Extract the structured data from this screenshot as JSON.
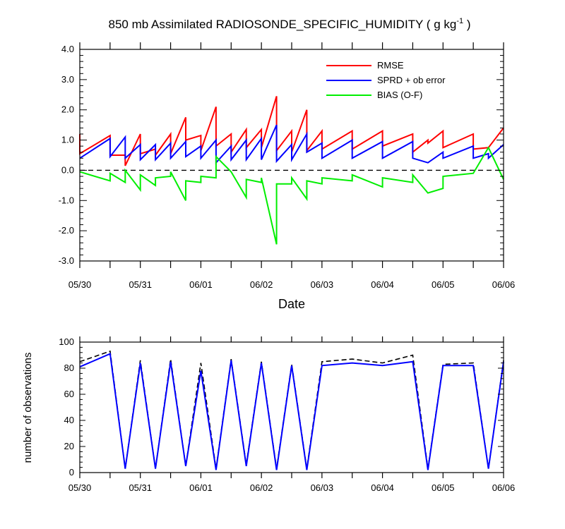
{
  "chart_data": [
    {
      "type": "line",
      "title": "850 mb Assimilated RADIOSONDE_SPECIFIC_HUMIDITY ( g kg",
      "title_units_exp": "-1",
      "title_close": " )",
      "xlabel": "Date",
      "ylabel": "",
      "ylim": [
        -3.0,
        4.0
      ],
      "yticks": [
        -3.0,
        -2.0,
        -1.0,
        0.0,
        1.0,
        2.0,
        3.0,
        4.0
      ],
      "ytick_labels": [
        "-3.0",
        "-2.0",
        "-1.0",
        "0.0",
        "1.0",
        "2.0",
        "3.0",
        "4.0"
      ],
      "xlim": [
        0,
        14
      ],
      "xticks": [
        0,
        2,
        4,
        6,
        8,
        10,
        12,
        14
      ],
      "xtick_labels": [
        "05/30",
        "05/31",
        "06/01",
        "06/02",
        "06/03",
        "06/04",
        "06/05",
        "06/06"
      ],
      "grid": false,
      "legend_position": "top-right",
      "reference_line": {
        "y": 0.0,
        "style": "dashed",
        "color": "#000000"
      },
      "series": [
        {
          "name": "RMSE",
          "color": "#ff0000",
          "points": [
            [
              0,
              1.2
            ],
            [
              0,
              0.55
            ],
            [
              1,
              1.15
            ],
            [
              1,
              0.5
            ],
            [
              1.5,
              0.5
            ],
            [
              1.5,
              0.15
            ],
            [
              2,
              1.2
            ],
            [
              2,
              0.55
            ],
            [
              2.5,
              0.7
            ],
            [
              2.5,
              0.5
            ],
            [
              3,
              1.2
            ],
            [
              3,
              0.55
            ],
            [
              3.5,
              1.75
            ],
            [
              3.5,
              1.0
            ],
            [
              4,
              1.15
            ],
            [
              4,
              0.65
            ],
            [
              4.5,
              2.1
            ],
            [
              4.5,
              0.8
            ],
            [
              5,
              1.2
            ],
            [
              5,
              0.6
            ],
            [
              5.5,
              1.35
            ],
            [
              5.5,
              0.75
            ],
            [
              6,
              1.35
            ],
            [
              6,
              0.75
            ],
            [
              6.5,
              2.45
            ],
            [
              6.5,
              0.65
            ],
            [
              7,
              1.3
            ],
            [
              7,
              0.6
            ],
            [
              7.5,
              2.0
            ],
            [
              7.5,
              0.65
            ],
            [
              8,
              1.3
            ],
            [
              8,
              0.7
            ],
            [
              9,
              1.3
            ],
            [
              9,
              0.7
            ],
            [
              10,
              1.3
            ],
            [
              10,
              0.8
            ],
            [
              11,
              1.2
            ],
            [
              11,
              0.6
            ],
            [
              11.5,
              1.0
            ],
            [
              11.5,
              0.9
            ],
            [
              12,
              1.3
            ],
            [
              12,
              0.75
            ],
            [
              13,
              1.2
            ],
            [
              13,
              0.7
            ],
            [
              13.5,
              0.75
            ],
            [
              14,
              1.4
            ]
          ]
        },
        {
          "name": "SPRD + ob error",
          "color": "#0000ff",
          "points": [
            [
              0,
              0.4
            ],
            [
              1,
              1.05
            ],
            [
              1,
              0.45
            ],
            [
              1.5,
              1.1
            ],
            [
              1.5,
              0.4
            ],
            [
              2,
              0.85
            ],
            [
              2,
              0.35
            ],
            [
              2.5,
              0.85
            ],
            [
              2.5,
              0.35
            ],
            [
              3,
              0.9
            ],
            [
              3,
              0.4
            ],
            [
              3.5,
              0.95
            ],
            [
              3.5,
              0.45
            ],
            [
              4,
              0.8
            ],
            [
              4,
              0.4
            ],
            [
              4.5,
              1.0
            ],
            [
              4.5,
              0.25
            ],
            [
              5,
              0.8
            ],
            [
              5,
              0.35
            ],
            [
              5.5,
              1.0
            ],
            [
              5.5,
              0.35
            ],
            [
              6,
              1.05
            ],
            [
              6,
              0.35
            ],
            [
              6.5,
              1.5
            ],
            [
              6.5,
              0.3
            ],
            [
              7,
              0.85
            ],
            [
              7,
              0.35
            ],
            [
              7.5,
              1.2
            ],
            [
              7.5,
              0.6
            ],
            [
              8,
              0.9
            ],
            [
              8,
              0.4
            ],
            [
              9,
              1.0
            ],
            [
              9,
              0.4
            ],
            [
              10,
              0.95
            ],
            [
              10,
              0.4
            ],
            [
              11,
              0.95
            ],
            [
              11,
              0.4
            ],
            [
              11.5,
              0.25
            ],
            [
              12,
              0.6
            ],
            [
              12,
              0.4
            ],
            [
              13,
              0.8
            ],
            [
              13,
              0.4
            ],
            [
              13.5,
              0.55
            ],
            [
              13.5,
              0.4
            ],
            [
              14,
              0.85
            ]
          ]
        },
        {
          "name": "BIAS (O-F)",
          "color": "#00ee00",
          "points": [
            [
              0,
              -0.05
            ],
            [
              1,
              -0.35
            ],
            [
              1,
              -0.1
            ],
            [
              1.5,
              -0.4
            ],
            [
              1.5,
              0.0
            ],
            [
              2,
              -0.65
            ],
            [
              2,
              -0.15
            ],
            [
              2.5,
              -0.5
            ],
            [
              2.5,
              -0.25
            ],
            [
              3,
              -0.2
            ],
            [
              3,
              -0.05
            ],
            [
              3.5,
              -1.0
            ],
            [
              3.5,
              -0.35
            ],
            [
              4,
              -0.4
            ],
            [
              4,
              -0.2
            ],
            [
              4.5,
              -0.25
            ],
            [
              4.5,
              0.45
            ],
            [
              5,
              -0.05
            ],
            [
              5.5,
              -0.9
            ],
            [
              5.5,
              -0.3
            ],
            [
              6,
              -0.4
            ],
            [
              6,
              -0.25
            ],
            [
              6.5,
              -2.45
            ],
            [
              6.5,
              -0.45
            ],
            [
              7,
              -0.45
            ],
            [
              7,
              -0.25
            ],
            [
              7.5,
              -0.95
            ],
            [
              7.5,
              -0.35
            ],
            [
              8,
              -0.45
            ],
            [
              8,
              -0.25
            ],
            [
              9,
              -0.35
            ],
            [
              9,
              -0.15
            ],
            [
              10,
              -0.55
            ],
            [
              10,
              -0.25
            ],
            [
              11,
              -0.4
            ],
            [
              11,
              -0.15
            ],
            [
              11.5,
              -0.75
            ],
            [
              12,
              -0.6
            ],
            [
              12,
              -0.2
            ],
            [
              13,
              -0.1
            ],
            [
              13.5,
              0.75
            ],
            [
              14,
              -0.3
            ]
          ]
        }
      ]
    },
    {
      "type": "line",
      "title": "",
      "xlabel": "",
      "ylabel": "number of observations",
      "ylim": [
        0,
        100
      ],
      "yticks": [
        0,
        20,
        40,
        60,
        80,
        100
      ],
      "ytick_labels": [
        "0",
        "20",
        "40",
        "60",
        "80",
        "100"
      ],
      "xlim": [
        0,
        14
      ],
      "xticks": [
        0,
        2,
        4,
        6,
        8,
        10,
        12,
        14
      ],
      "xtick_labels": [
        "05/30",
        "05/31",
        "06/01",
        "06/02",
        "06/03",
        "06/04",
        "06/05",
        "06/06"
      ],
      "grid": false,
      "series": [
        {
          "color": "#000000",
          "style": "dashed",
          "points": [
            [
              0,
              85
            ],
            [
              1,
              93
            ],
            [
              1.5,
              3
            ],
            [
              2,
              86
            ],
            [
              2.5,
              3
            ],
            [
              3,
              87
            ],
            [
              3.5,
              5
            ],
            [
              4,
              84
            ],
            [
              4.5,
              3
            ],
            [
              5,
              87
            ],
            [
              5.5,
              6
            ],
            [
              6,
              85
            ],
            [
              6.5,
              3
            ],
            [
              7,
              83
            ],
            [
              7.5,
              3
            ],
            [
              8,
              85
            ],
            [
              9,
              87
            ],
            [
              10,
              84
            ],
            [
              11,
              90
            ],
            [
              11.5,
              3
            ],
            [
              12,
              83
            ],
            [
              13,
              84
            ],
            [
              13.5,
              3
            ],
            [
              14,
              86
            ]
          ]
        },
        {
          "color": "#0000ff",
          "style": "solid",
          "points": [
            [
              0,
              81
            ],
            [
              1,
              91
            ],
            [
              1.5,
              3
            ],
            [
              2,
              84
            ],
            [
              2.5,
              3
            ],
            [
              3,
              85
            ],
            [
              3.5,
              5
            ],
            [
              4,
              78
            ],
            [
              4.5,
              2
            ],
            [
              5,
              86
            ],
            [
              5.5,
              5
            ],
            [
              6,
              84
            ],
            [
              6.5,
              2
            ],
            [
              7,
              82
            ],
            [
              7.5,
              2
            ],
            [
              8,
              82
            ],
            [
              9,
              84
            ],
            [
              10,
              82
            ],
            [
              11,
              85
            ],
            [
              11.5,
              2
            ],
            [
              12,
              82
            ],
            [
              13,
              82
            ],
            [
              13.5,
              3
            ],
            [
              14,
              85
            ]
          ]
        }
      ]
    }
  ]
}
